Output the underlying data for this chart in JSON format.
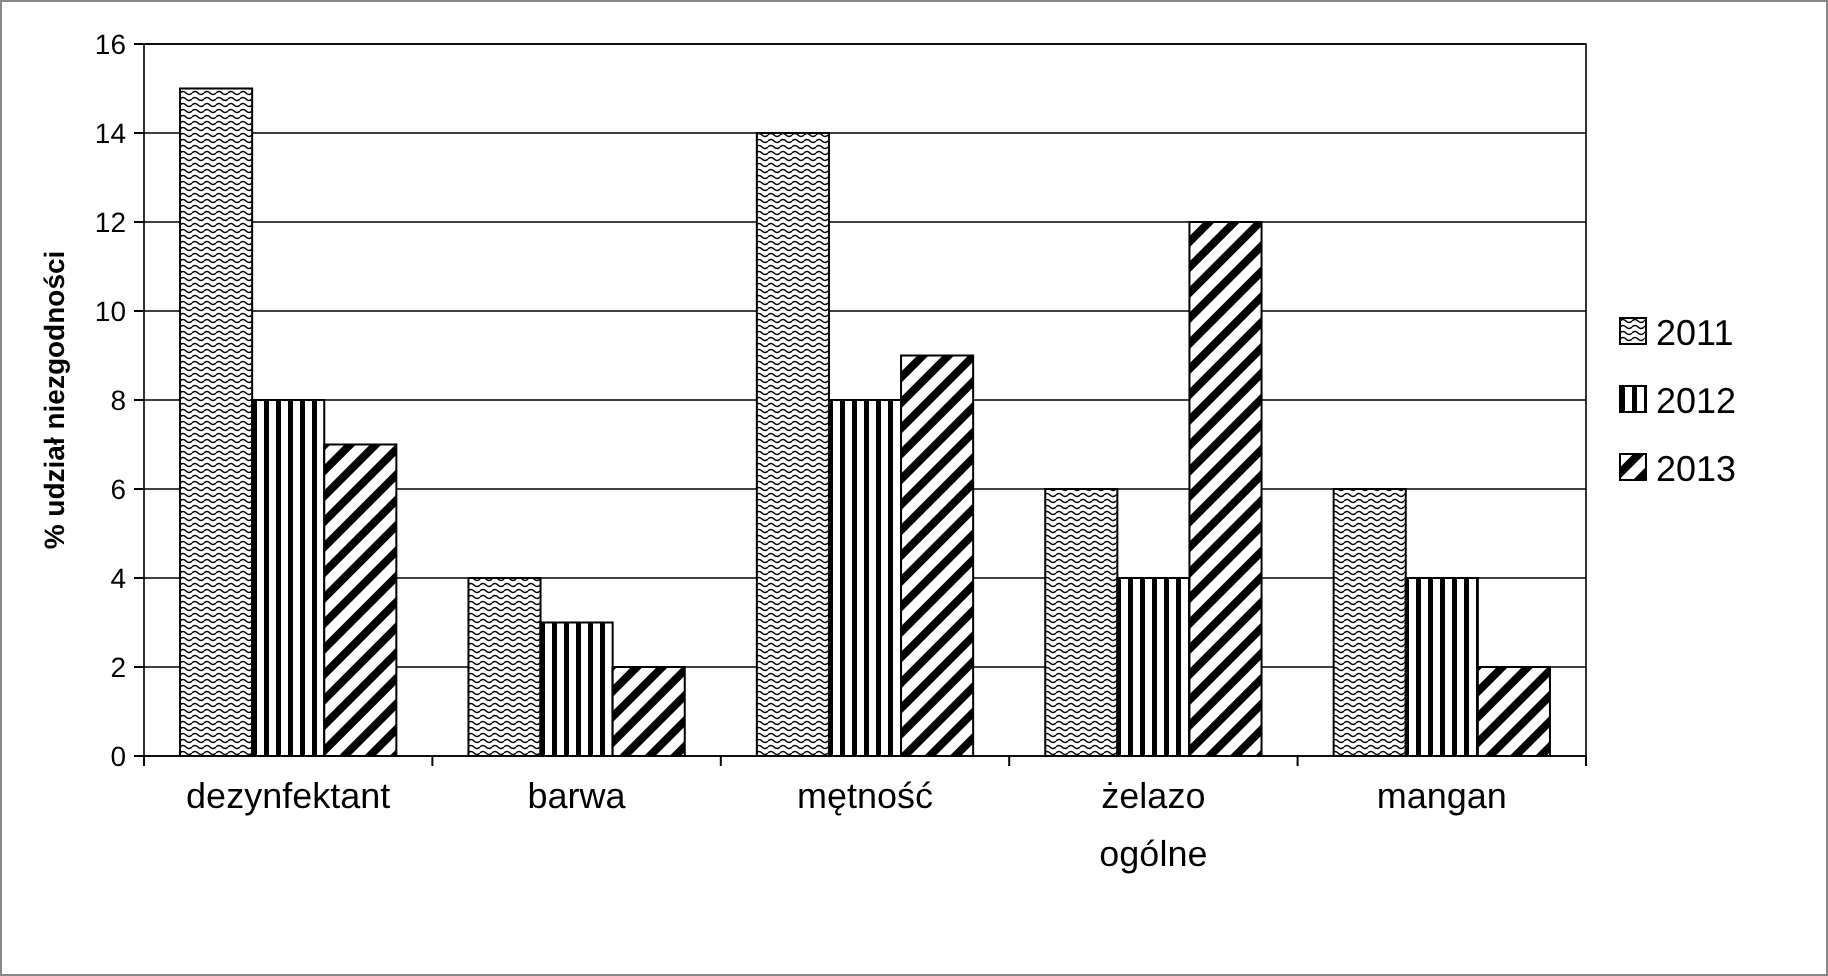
{
  "chart_data": {
    "type": "bar",
    "ylabel": "% udział niezgodności",
    "categories": [
      "dezynfektant",
      "barwa",
      "mętność",
      "żelazo ogólne",
      "mangan"
    ],
    "series": [
      {
        "name": "2011",
        "color": "#000000",
        "values": [
          15,
          4,
          14,
          6,
          6
        ]
      },
      {
        "name": "2012",
        "color": "#000000",
        "values": [
          8,
          3,
          8,
          4,
          4
        ]
      },
      {
        "name": "2013",
        "color": "#000000",
        "values": [
          7,
          2,
          9,
          12,
          2
        ]
      }
    ],
    "ylim": [
      0,
      16
    ],
    "yticks": [
      0,
      2,
      4,
      6,
      8,
      10,
      12,
      14,
      16
    ],
    "grid": "y",
    "legend": "right"
  }
}
